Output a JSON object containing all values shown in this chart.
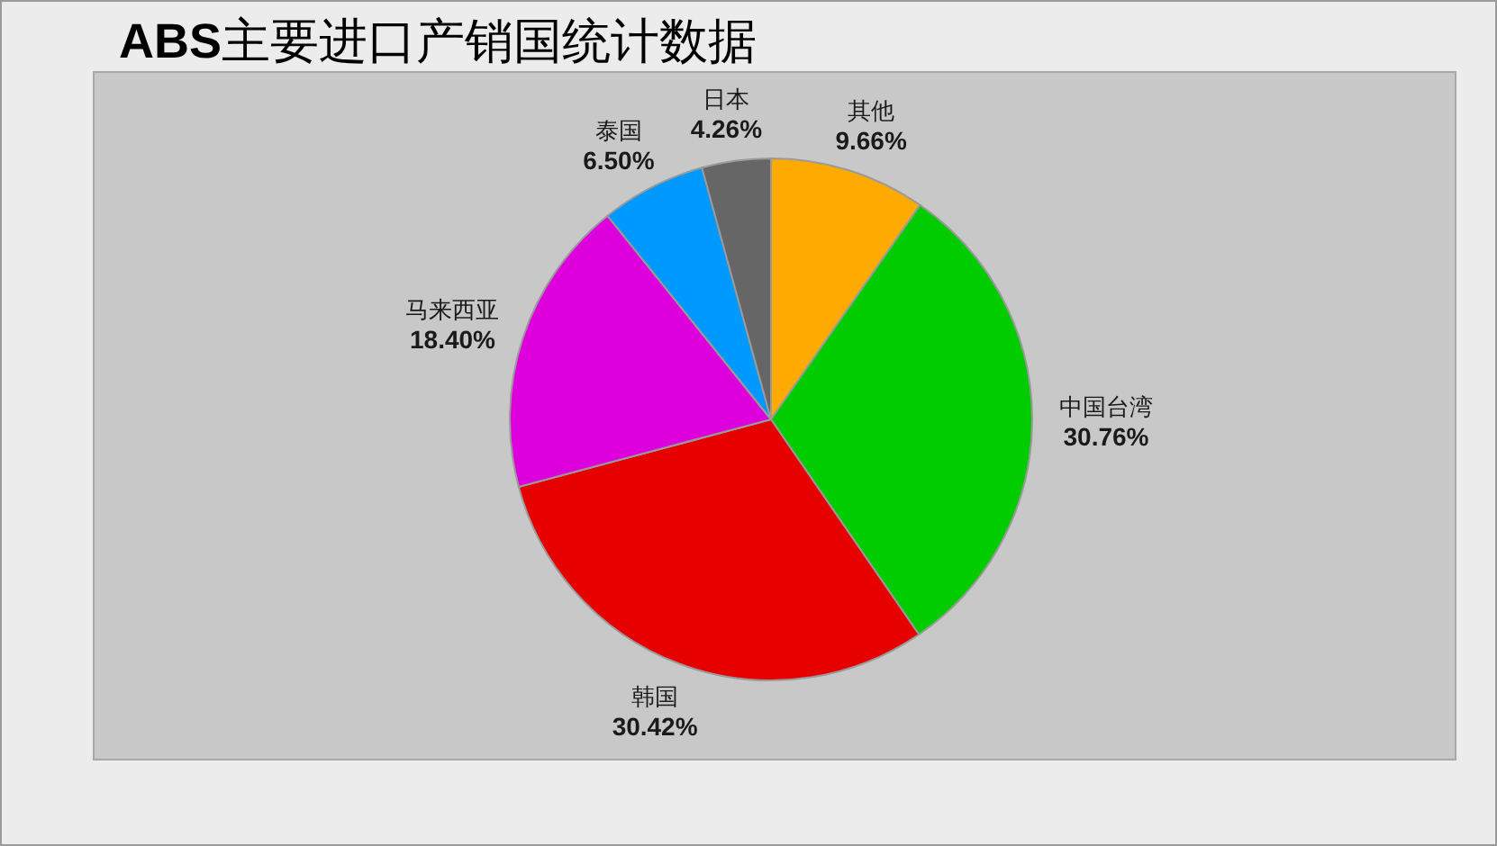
{
  "chart_data": {
    "type": "pie",
    "title": "**ABS**主要进口产销国统计数据",
    "categories": [
      "其他",
      "中国台湾",
      "韩国",
      "马来西亚",
      "泰国",
      "日本"
    ],
    "values": [
      9.66,
      30.76,
      30.42,
      18.4,
      6.5,
      4.26
    ],
    "value_labels": [
      "9.66%",
      "30.76%",
      "30.42%",
      "18.40%",
      "6.50%",
      "4.26%"
    ],
    "colors": [
      "#ffaa00",
      "#00cc00",
      "#e60000",
      "#dd00dd",
      "#0099ff",
      "#666666"
    ]
  }
}
